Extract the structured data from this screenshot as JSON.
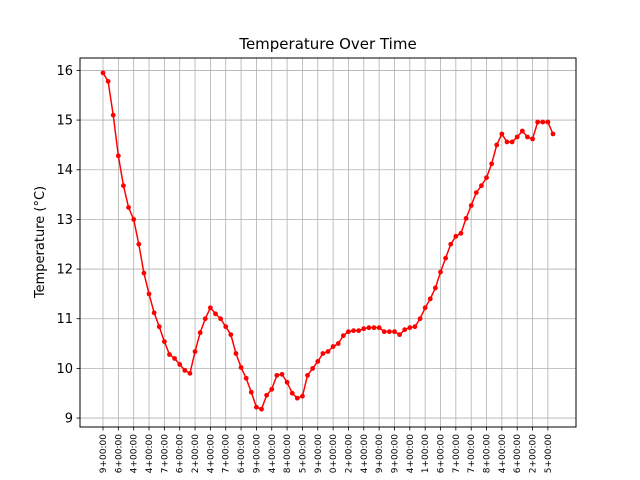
{
  "chart_data": {
    "type": "line",
    "title": "Temperature Over Time",
    "xlabel": "",
    "ylabel": "Temperature (°C)",
    "ylim": [
      8.82,
      16.25
    ],
    "yticks": [
      9,
      10,
      11,
      12,
      13,
      14,
      15,
      16
    ],
    "grid": true,
    "line_color": "#ff0000",
    "x_tick_labels": [
      "9+00:00",
      "6+00:00",
      "4+00:00",
      "4+00:00",
      "7+00:00",
      "6+00:00",
      "2+00:00",
      "4+00:00",
      "7+00:00",
      "6+00:00",
      "9+00:00",
      "4+00:00",
      "8+00:00",
      "5+00:00",
      "9+00:00",
      "0+00:00",
      "2+00:00",
      "4+00:00",
      "9+00:00",
      "9+00:00",
      "4+00:00",
      "1+00:00",
      "6+00:00",
      "7+00:00",
      "7+00:00",
      "8+00:00",
      "4+00:00",
      "6+00:00",
      "2+00:00",
      "5+00:00"
    ],
    "values": [
      15.95,
      15.78,
      15.1,
      14.28,
      13.68,
      13.24,
      13.0,
      12.5,
      11.92,
      11.5,
      11.12,
      10.84,
      10.54,
      10.28,
      10.2,
      10.08,
      9.96,
      9.9,
      10.34,
      10.72,
      11.0,
      11.22,
      11.1,
      11.0,
      10.84,
      10.68,
      10.3,
      10.02,
      9.8,
      9.52,
      9.22,
      9.18,
      9.46,
      9.58,
      9.86,
      9.88,
      9.72,
      9.5,
      9.4,
      9.44,
      9.86,
      10.0,
      10.14,
      10.3,
      10.34,
      10.44,
      10.5,
      10.66,
      10.74,
      10.76,
      10.76,
      10.8,
      10.82,
      10.82,
      10.82,
      10.74,
      10.74,
      10.74,
      10.68,
      10.78,
      10.82,
      10.84,
      11.0,
      11.22,
      11.4,
      11.62,
      11.94,
      12.22,
      12.5,
      12.66,
      12.72,
      13.02,
      13.28,
      13.54,
      13.68,
      13.84,
      14.12,
      14.5,
      14.72,
      14.56,
      14.56,
      14.66,
      14.78,
      14.66,
      14.62,
      14.96,
      14.96,
      14.96,
      14.72
    ]
  }
}
